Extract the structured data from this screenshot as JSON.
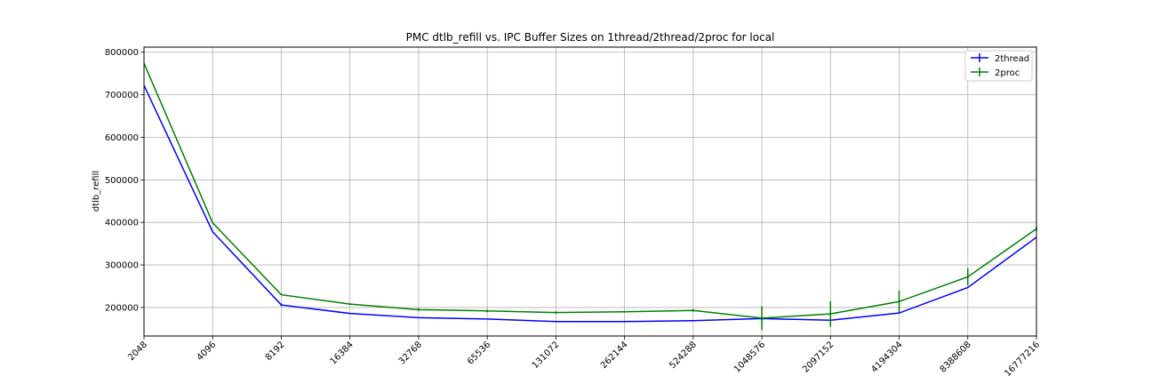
{
  "chart_data": {
    "type": "line",
    "title": "PMC dtlb_refill vs. IPC Buffer Sizes on 1thread/2thread/2proc for local",
    "xlabel": "",
    "ylabel": "dtlb_refill",
    "x_scale": "log2",
    "x": [
      2048,
      4096,
      8192,
      16384,
      32768,
      65536,
      131072,
      262144,
      524288,
      1048576,
      2097152,
      4194304,
      8388608,
      16777216
    ],
    "x_tick_labels": [
      "2048",
      "4096",
      "8192",
      "16384",
      "32768",
      "65536",
      "131072",
      "262144",
      "524288",
      "1048576",
      "2097152",
      "4194304",
      "8388608",
      "16777216"
    ],
    "y_ticks": [
      200000,
      300000,
      400000,
      500000,
      600000,
      700000,
      800000
    ],
    "y_tick_labels": [
      "200000",
      "300000",
      "400000",
      "500000",
      "600000",
      "700000",
      "800000"
    ],
    "ylim": [
      133000,
      812000
    ],
    "grid": true,
    "legend_position": "top-right",
    "series": [
      {
        "name": "2thread",
        "color": "#0000ff",
        "values": [
          722000,
          378000,
          206000,
          186000,
          176000,
          173000,
          167000,
          167000,
          169000,
          174000,
          170000,
          187000,
          247000,
          365000
        ],
        "errors": [
          0,
          0,
          3000,
          0,
          0,
          0,
          0,
          0,
          0,
          4000,
          2000,
          0,
          0,
          0
        ]
      },
      {
        "name": "2proc",
        "color": "#008000",
        "values": [
          774000,
          399000,
          230000,
          208000,
          195000,
          192000,
          188000,
          190000,
          193000,
          175000,
          185000,
          214000,
          272000,
          385000
        ],
        "errors": [
          0,
          0,
          0,
          2000,
          3000,
          3000,
          3000,
          2000,
          3000,
          28000,
          30000,
          26000,
          20000,
          5000
        ]
      }
    ]
  }
}
